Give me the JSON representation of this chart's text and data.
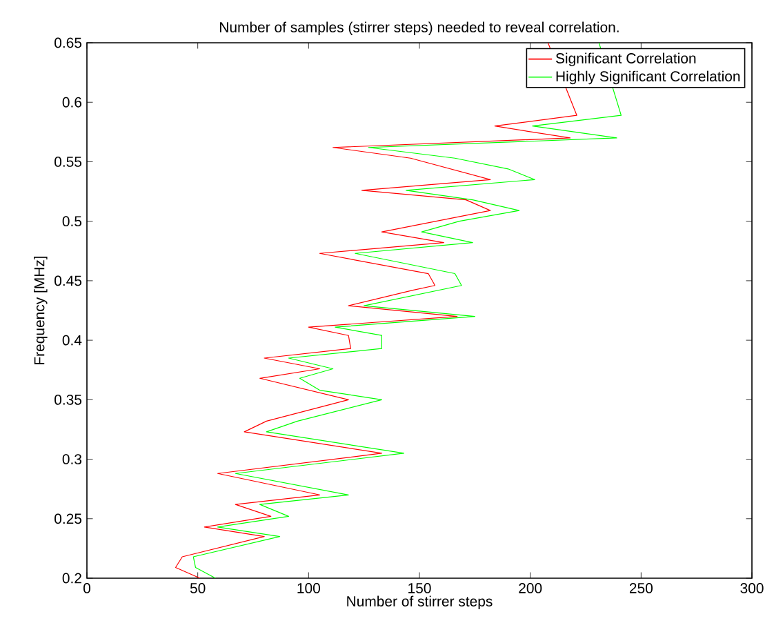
{
  "chart_data": {
    "type": "line",
    "title": "Number of samples (stirrer steps) needed to reveal correlation.",
    "xlabel": "Number of stirrer steps",
    "ylabel": "Frequency [MHz]",
    "xlim": [
      0,
      300
    ],
    "ylim": [
      0.2,
      0.65
    ],
    "xticks": [
      0,
      50,
      100,
      150,
      200,
      250,
      300
    ],
    "yticks": [
      0.2,
      0.25,
      0.3,
      0.35,
      0.4,
      0.45,
      0.5,
      0.55,
      0.6,
      0.65
    ],
    "legend": "top right",
    "grid": false,
    "marker": "none",
    "line_style": "solid",
    "series": [
      {
        "name": "Significant Correlation",
        "color": "#ff0000",
        "x": [
          51,
          40,
          43,
          80,
          53,
          83,
          67,
          105,
          59,
          133,
          71,
          81,
          118,
          78,
          105,
          80,
          119,
          118,
          100,
          167,
          118,
          147,
          157,
          154,
          105,
          161,
          133,
          182,
          171,
          124,
          182,
          146,
          111,
          218,
          184,
          221,
          208
        ],
        "values": [
          0.2,
          0.209,
          0.218,
          0.235,
          0.243,
          0.252,
          0.262,
          0.27,
          0.288,
          0.305,
          0.323,
          0.332,
          0.35,
          0.368,
          0.376,
          0.385,
          0.393,
          0.404,
          0.411,
          0.42,
          0.429,
          0.442,
          0.446,
          0.456,
          0.473,
          0.482,
          0.491,
          0.509,
          0.518,
          0.526,
          0.535,
          0.553,
          0.562,
          0.57,
          0.58,
          0.589,
          0.65
        ]
      },
      {
        "name": "Highly Significant Correlation",
        "color": "#00ff00",
        "x": [
          58,
          49,
          48,
          87,
          59,
          91,
          78,
          118,
          67,
          143,
          81,
          95,
          133,
          105,
          96,
          111,
          91,
          133,
          133,
          112,
          175,
          125,
          169,
          166,
          121,
          174,
          151,
          168,
          195,
          174,
          144,
          202,
          190,
          166,
          127,
          239,
          201,
          241,
          231
        ],
        "values": [
          0.2,
          0.209,
          0.218,
          0.235,
          0.243,
          0.252,
          0.262,
          0.27,
          0.288,
          0.305,
          0.323,
          0.332,
          0.35,
          0.358,
          0.368,
          0.376,
          0.385,
          0.393,
          0.404,
          0.411,
          0.42,
          0.429,
          0.446,
          0.456,
          0.473,
          0.482,
          0.491,
          0.5,
          0.509,
          0.518,
          0.526,
          0.535,
          0.544,
          0.553,
          0.562,
          0.57,
          0.58,
          0.589,
          0.65
        ]
      }
    ]
  }
}
